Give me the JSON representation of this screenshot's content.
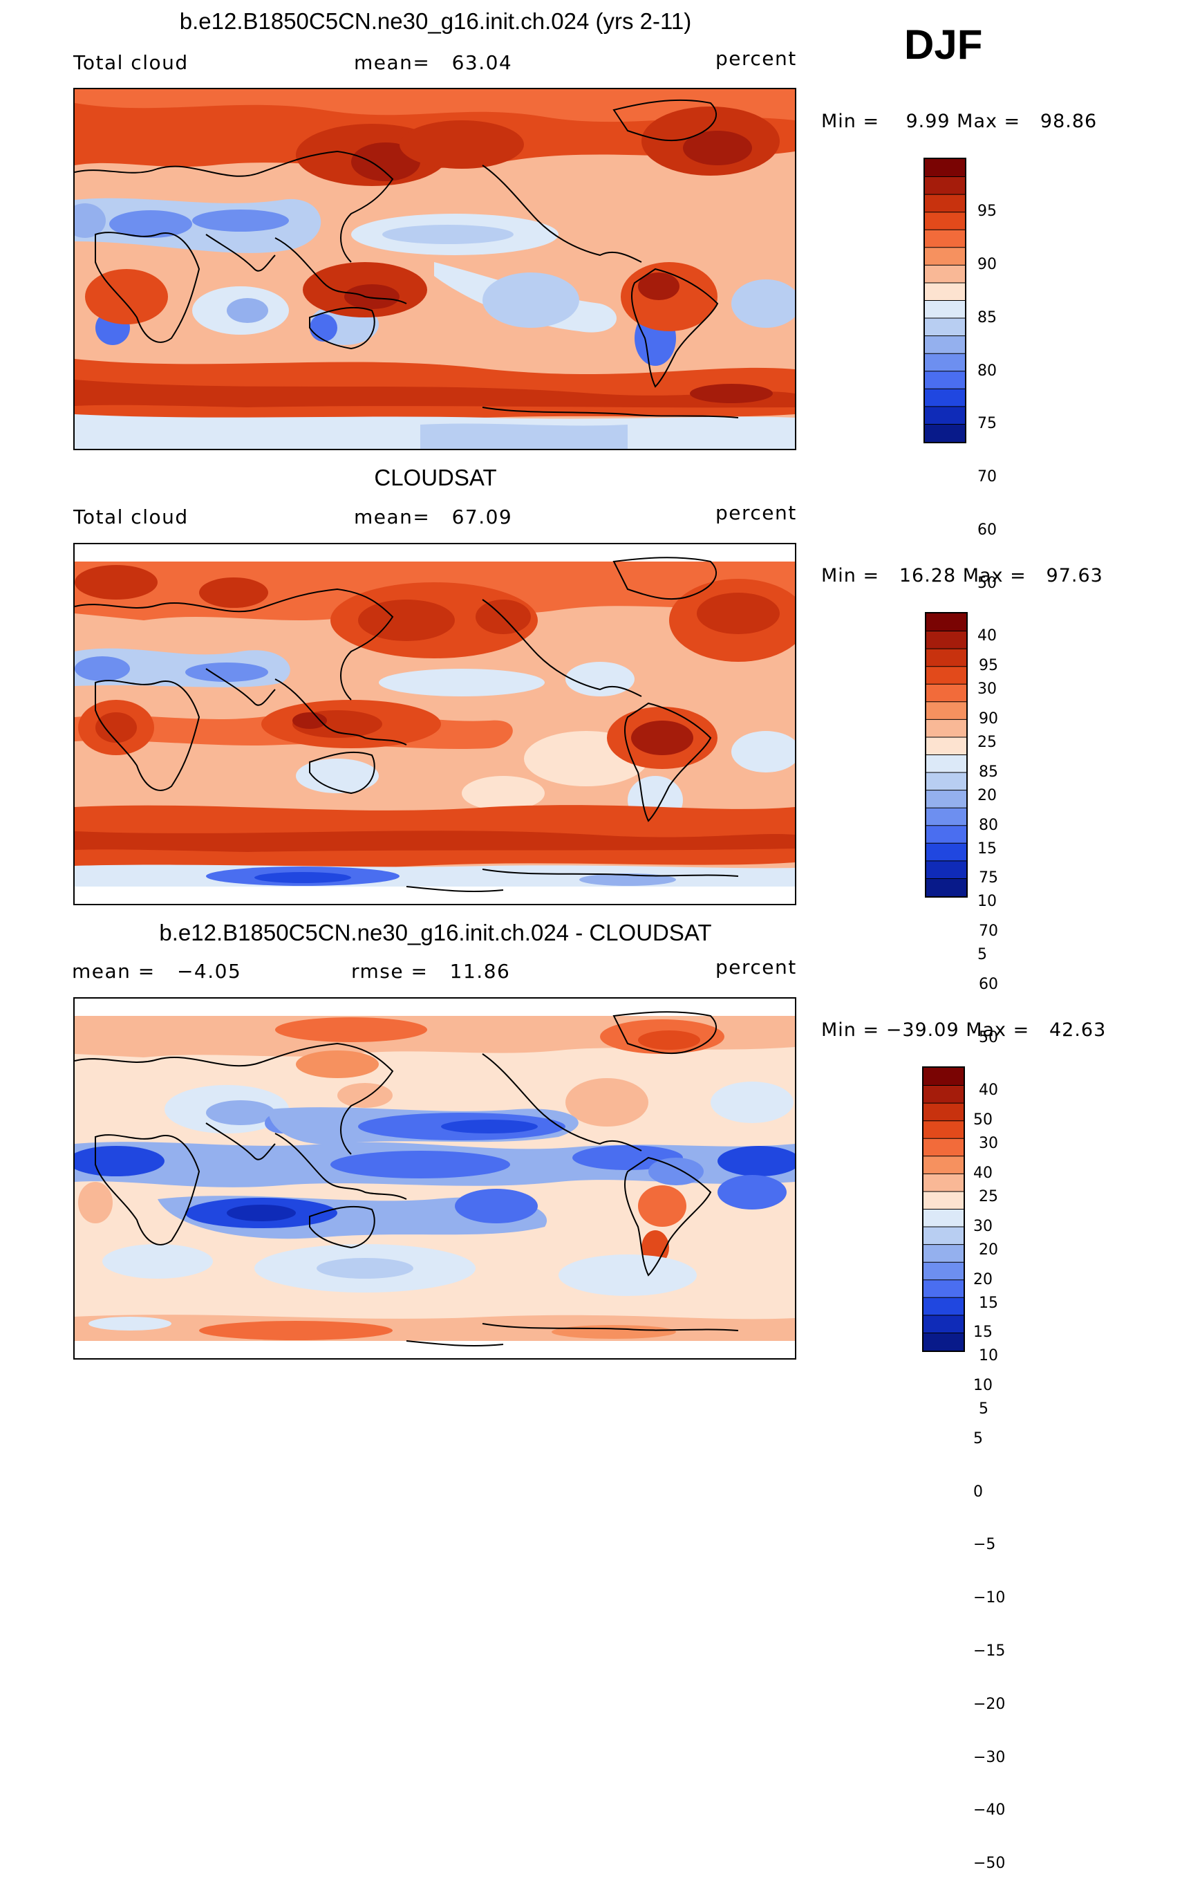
{
  "season": "DJF",
  "panels": [
    {
      "title": "b.e12.B1850C5CN.ne30_g16.init.ch.024 (yrs 2-11)",
      "left_text": "Total cloud",
      "center_text": "mean=   63.04",
      "right_text": "percent",
      "minmax": "Min =    9.99 Max =   98.86",
      "colorbar_labels": [
        "95",
        "90",
        "85",
        "80",
        "75",
        "70",
        "60",
        "50",
        "40",
        "30",
        "25",
        "20",
        "15",
        "10",
        "5"
      ]
    },
    {
      "title": "CLOUDSAT",
      "left_text": "Total cloud",
      "center_text": "mean=   67.09",
      "right_text": "percent",
      "minmax": "Min =   16.28 Max =   97.63",
      "colorbar_labels": [
        "95",
        "90",
        "85",
        "80",
        "75",
        "70",
        "60",
        "50",
        "40",
        "30",
        "25",
        "20",
        "15",
        "10",
        "5"
      ]
    },
    {
      "title": "b.e12.B1850C5CN.ne30_g16.init.ch.024 - CLOUDSAT",
      "left_text": "mean =   −4.05",
      "center_text": "rmse =   11.86",
      "right_text": "percent",
      "minmax": "Min = −39.09 Max =   42.63",
      "colorbar_labels": [
        "50",
        "40",
        "30",
        "20",
        "15",
        "10",
        "5",
        "0",
        "−5",
        "−10",
        "−15",
        "−20",
        "−30",
        "−40",
        "−50"
      ]
    }
  ],
  "colors": [
    "#7a0403",
    "#a51c0b",
    "#c8320e",
    "#e24a1b",
    "#f26b3a",
    "#f6915f",
    "#f9b896",
    "#fde3d0",
    "#dce9f8",
    "#b8cef2",
    "#94b0ee",
    "#6d8ff0",
    "#4a6ef0",
    "#2047e0",
    "#0f2bb8",
    "#081a8a"
  ]
}
